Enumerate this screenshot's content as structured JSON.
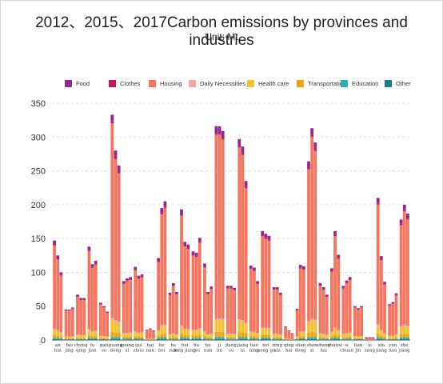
{
  "chart_data": {
    "type": "bar",
    "stacked": true,
    "title": "2012、2015、2017Carbon emissions by provinces and industries",
    "subtitle": "Unit: Mt",
    "ylim": [
      0,
      350
    ],
    "yticks": [
      0,
      50,
      100,
      150,
      200,
      250,
      300,
      350
    ],
    "grid": true,
    "legend_position": "top",
    "years": [
      "2012",
      "2015",
      "2017"
    ],
    "categories": [
      "an hui",
      "bei jing",
      "chong qing",
      "fu jian",
      "gan su",
      "guang dong",
      "guang xi",
      "gui zhou",
      "hai nan",
      "he bei",
      "he nan",
      "hei long jiang",
      "hu bei",
      "hu nan",
      "ji lin",
      "jiang su",
      "jiang xi",
      "liao ning",
      "nei meng gu",
      "ning xia",
      "qing hai",
      "shan dong",
      "shan xi",
      "shang hai",
      "shanxi",
      "si chuan",
      "tian jin",
      "xi zang",
      "xin jiang",
      "yun nan",
      "zhe jiang"
    ],
    "series": [
      {
        "name": "Food",
        "color": "#8e2a8e"
      },
      {
        "name": "Clothes",
        "color": "#c2185b"
      },
      {
        "name": "Housing",
        "color": "#f47560"
      },
      {
        "name": "Daily Necessities",
        "color": "#f4a6a6"
      },
      {
        "name": "Health care",
        "color": "#f1c232"
      },
      {
        "name": "Transportation",
        "color": "#f0a30a"
      },
      {
        "name": "Education",
        "color": "#2ab0b0"
      },
      {
        "name": "Other",
        "color": "#1a7f7f"
      }
    ],
    "totals": [
      [
        147,
        125,
        100
      ],
      [
        45,
        45,
        48
      ],
      [
        67,
        62,
        62
      ],
      [
        138,
        112,
        117
      ],
      [
        55,
        50,
        42
      ],
      [
        333,
        280,
        258
      ],
      [
        87,
        91,
        93
      ],
      [
        108,
        95,
        97
      ],
      [
        15,
        17,
        14
      ],
      [
        121,
        195,
        205
      ],
      [
        70,
        84,
        71
      ],
      [
        193,
        145,
        141
      ],
      [
        131,
        129,
        151
      ],
      [
        113,
        71,
        79
      ],
      [
        316,
        316,
        309
      ],
      [
        80,
        80,
        77
      ],
      [
        297,
        286,
        235
      ],
      [
        110,
        107,
        87
      ],
      [
        161,
        157,
        154
      ],
      [
        78,
        78,
        70
      ],
      [
        20,
        14,
        10
      ],
      [
        46,
        111,
        109
      ],
      [
        264,
        313,
        292
      ],
      [
        84,
        78,
        67
      ],
      [
        106,
        161,
        126
      ],
      [
        80,
        88,
        93
      ],
      [
        50,
        47,
        50
      ],
      [
        4,
        4,
        4
      ],
      [
        210,
        124,
        86
      ],
      [
        53,
        56,
        69
      ],
      [
        178,
        200,
        187
      ]
    ]
  }
}
